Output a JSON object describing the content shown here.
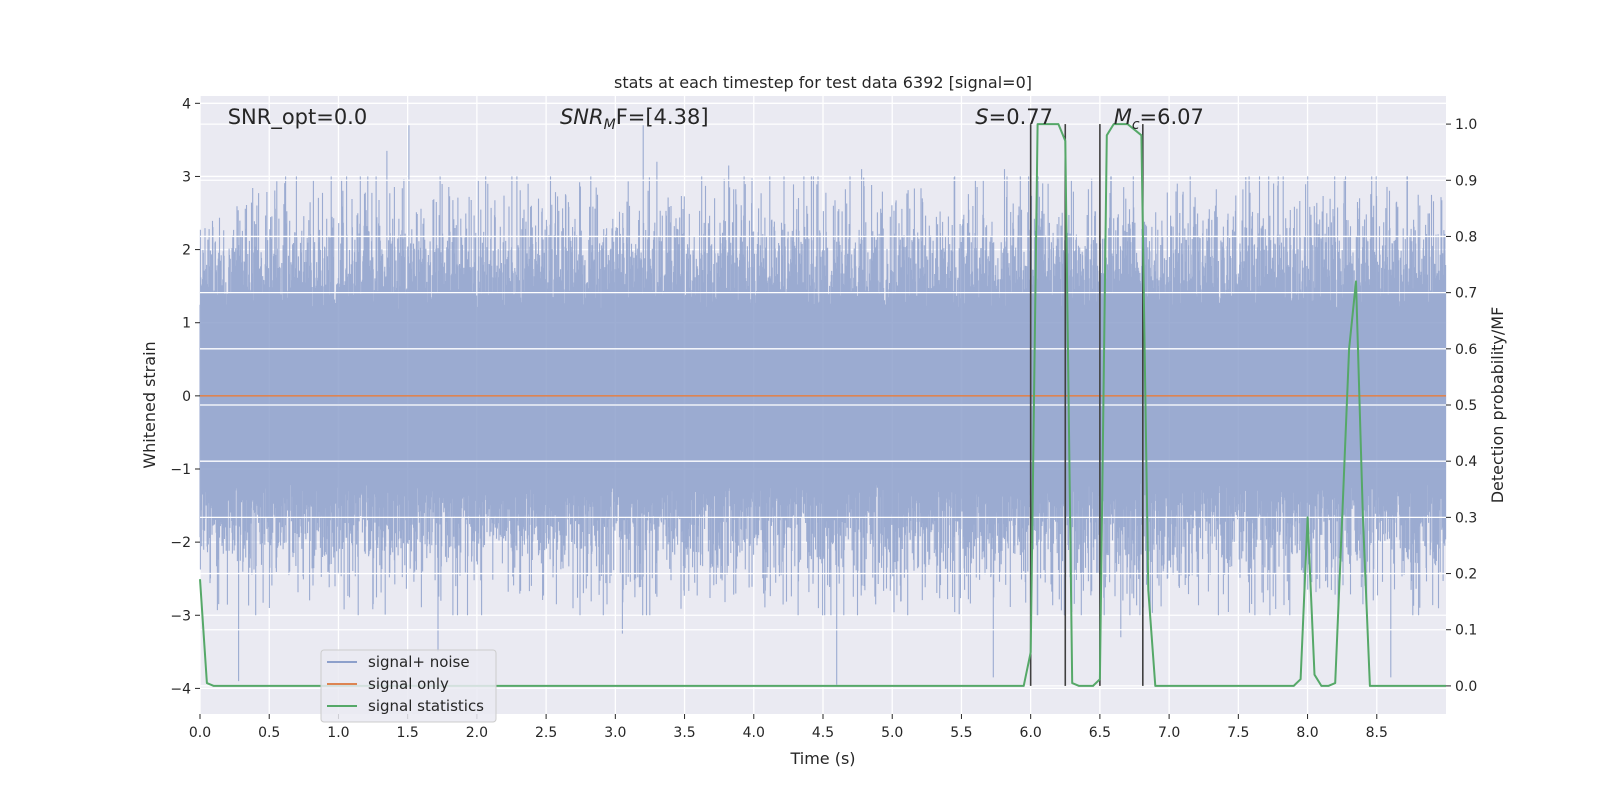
{
  "chart_data": {
    "type": "line",
    "title": "stats at each timestep for test data 6392 [signal=0]",
    "xlabel": "Time (s)",
    "ylabel": "Whitened strain",
    "ylabel_right": "Detection probability/MF",
    "xlim": [
      0.0,
      9.0
    ],
    "ylim": [
      -4.35,
      4.1
    ],
    "ylim_right": [
      -0.05,
      1.05
    ],
    "x_ticks": [
      0.0,
      0.5,
      1.0,
      1.5,
      2.0,
      2.5,
      3.0,
      3.5,
      4.0,
      4.5,
      5.0,
      5.5,
      6.0,
      6.5,
      7.0,
      7.5,
      8.0,
      8.5
    ],
    "x_tick_labels": [
      "0.0",
      "0.5",
      "1.0",
      "1.5",
      "2.0",
      "2.5",
      "3.0",
      "3.5",
      "4.0",
      "4.5",
      "5.0",
      "5.5",
      "6.0",
      "6.5",
      "7.0",
      "7.5",
      "8.0",
      "8.5"
    ],
    "y_ticks": [
      -4,
      -3,
      -2,
      -1,
      0,
      1,
      2,
      3,
      4
    ],
    "y_tick_labels": [
      "−4",
      "−3",
      "−2",
      "−1",
      "0",
      "1",
      "2",
      "3",
      "4"
    ],
    "y_ticks_right": [
      0.0,
      0.1,
      0.2,
      0.3,
      0.4,
      0.5,
      0.6,
      0.7,
      0.8,
      0.9,
      1.0
    ],
    "y_tick_labels_right": [
      "0.0",
      "0.1",
      "0.2",
      "0.3",
      "0.4",
      "0.5",
      "0.6",
      "0.7",
      "0.8",
      "0.9",
      "1.0"
    ],
    "grid": true,
    "legend_position": "lower-left",
    "noise_band": {
      "t_start": 0.0,
      "t_end": 9.0,
      "sample_step": 0.003,
      "typical_amplitude": 1.4,
      "peaks": [
        {
          "t": 1.35,
          "y": 3.35
        },
        {
          "t": 1.51,
          "y": 3.7
        },
        {
          "t": 1.06,
          "y": 3.0
        },
        {
          "t": 0.82,
          "y": 2.95
        },
        {
          "t": 2.08,
          "y": 2.9
        },
        {
          "t": 2.37,
          "y": 2.9
        },
        {
          "t": 3.2,
          "y": 3.7
        },
        {
          "t": 3.3,
          "y": 3.2
        },
        {
          "t": 3.82,
          "y": 3.15
        },
        {
          "t": 4.78,
          "y": 3.1
        },
        {
          "t": 5.81,
          "y": 3.1
        },
        {
          "t": 5.6,
          "y": 2.95
        },
        {
          "t": 6.44,
          "y": 2.7
        },
        {
          "t": 7.72,
          "y": 3.0
        },
        {
          "t": 8.0,
          "y": 3.0
        },
        {
          "t": 8.36,
          "y": 2.65
        },
        {
          "t": 8.8,
          "y": 2.75
        },
        {
          "t": 0.28,
          "y": -3.9
        },
        {
          "t": 1.72,
          "y": -3.5
        },
        {
          "t": 3.05,
          "y": -3.25
        },
        {
          "t": 4.6,
          "y": -3.95
        },
        {
          "t": 5.73,
          "y": -3.85
        },
        {
          "t": 6.65,
          "y": -3.3
        },
        {
          "t": 8.6,
          "y": -3.85
        },
        {
          "t": 0.5,
          "y": -2.9
        },
        {
          "t": 4.75,
          "y": -3.0
        }
      ]
    },
    "series": [
      {
        "name": "signal+ noise",
        "color": "#8da0cb"
      },
      {
        "name": "signal only",
        "color": "#dd8452",
        "x": [
          0.0,
          9.0
        ],
        "y": [
          0.0,
          0.0
        ]
      },
      {
        "name": "signal statistics",
        "color": "#55a868",
        "axis": "right",
        "x": [
          0.0,
          0.05,
          0.1,
          0.15,
          0.2,
          5.9,
          5.95,
          6.0,
          6.05,
          6.1,
          6.15,
          6.2,
          6.25,
          6.3,
          6.35,
          6.4,
          6.45,
          6.5,
          6.55,
          6.6,
          6.65,
          6.7,
          6.75,
          6.8,
          6.85,
          6.9,
          6.95,
          7.0,
          7.85,
          7.9,
          7.95,
          8.0,
          8.05,
          8.1,
          8.15,
          8.2,
          8.25,
          8.3,
          8.35,
          8.4,
          8.45,
          8.5,
          8.55,
          8.6,
          9.0
        ],
        "y": [
          0.19,
          0.005,
          0.0,
          0.0,
          0.0,
          0.0,
          0.0,
          0.06,
          1.0,
          1.0,
          1.0,
          1.0,
          0.97,
          0.005,
          0.0,
          0.0,
          0.0,
          0.012,
          0.98,
          1.0,
          1.0,
          1.0,
          0.99,
          0.98,
          0.17,
          0.0,
          0.0,
          0.0,
          0.0,
          0.0,
          0.012,
          0.3,
          0.02,
          0.0,
          0.0,
          0.005,
          0.3,
          0.6,
          0.72,
          0.3,
          0.0,
          0.0,
          0.0,
          0.0,
          0.0
        ]
      }
    ],
    "vertical_markers": {
      "color": "#404040",
      "x": [
        6.0,
        6.25,
        6.5,
        6.81
      ]
    },
    "annotations": [
      {
        "text": "SNR_opt=0.0",
        "t": 0.2
      },
      {
        "text": "SNR",
        "sub": "M",
        "rest": "F=[4.38]",
        "t": 2.6
      },
      {
        "text": "S",
        "rest": "=0.77",
        "t": 5.6
      },
      {
        "text": "M",
        "sub": "c",
        "rest": "=6.07",
        "t": 6.6
      }
    ]
  }
}
